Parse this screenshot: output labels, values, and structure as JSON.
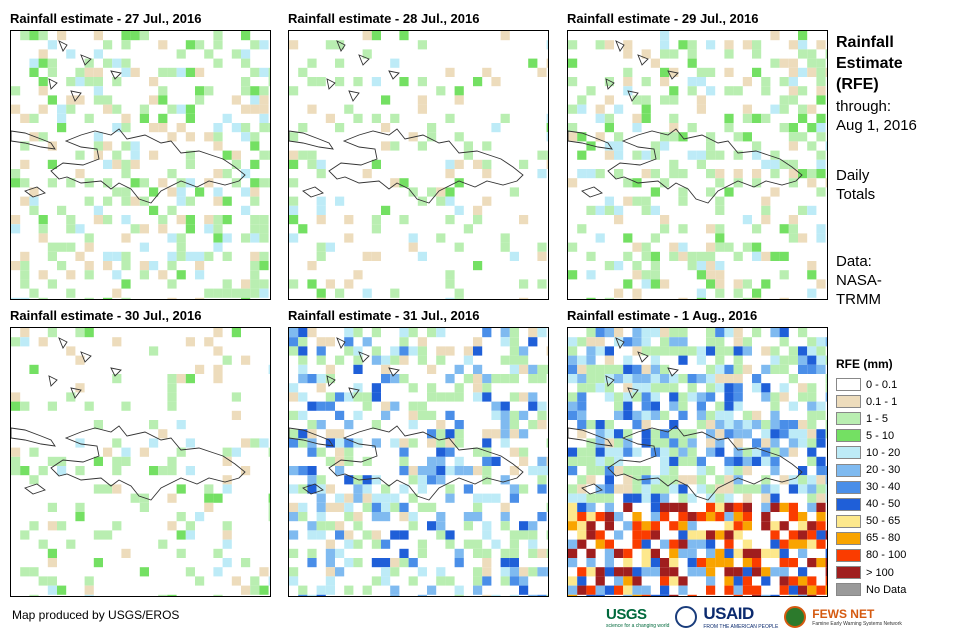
{
  "panels": [
    {
      "title": "Rainfall estimate - 27 Jul., 2016",
      "seed": 11,
      "intensity": "light"
    },
    {
      "title": "Rainfall estimate - 28 Jul., 2016",
      "seed": 23,
      "intensity": "sparse"
    },
    {
      "title": "Rainfall estimate - 29 Jul., 2016",
      "seed": 37,
      "intensity": "light"
    },
    {
      "title": "Rainfall estimate - 30 Jul., 2016",
      "seed": 41,
      "intensity": "sparse"
    },
    {
      "title": "Rainfall estimate - 31 Jul., 2016",
      "seed": 53,
      "intensity": "moderate"
    },
    {
      "title": "Rainfall estimate - 1 Aug., 2016",
      "seed": 67,
      "intensity": "heavy"
    }
  ],
  "side": {
    "title_line1": "Rainfall",
    "title_line2": "Estimate",
    "title_line3": "(RFE)",
    "through_label": "through:",
    "through_date": "Aug 1, 2016",
    "totals_line1": "Daily",
    "totals_line2": "Totals",
    "source_line1": "Data:",
    "source_line2": "NASA-",
    "source_line3": "TRMM"
  },
  "legend": {
    "title": "RFE (mm)",
    "items": [
      {
        "label": "0 - 0.1",
        "color": "#ffffff"
      },
      {
        "label": "0.1 - 1",
        "color": "#eddcbc"
      },
      {
        "label": "1 - 5",
        "color": "#b9eeb1"
      },
      {
        "label": "5 - 10",
        "color": "#74e063"
      },
      {
        "label": "10 - 20",
        "color": "#bdebf7"
      },
      {
        "label": "20 - 30",
        "color": "#7fbaf0"
      },
      {
        "label": "30 - 40",
        "color": "#4a8ee8"
      },
      {
        "label": "40 - 50",
        "color": "#1f5fd8"
      },
      {
        "label": "50 - 65",
        "color": "#fde88c"
      },
      {
        "label": "65 - 80",
        "color": "#f9a400"
      },
      {
        "label": "80 - 100",
        "color": "#fa3c00"
      },
      {
        "label": "> 100",
        "color": "#a01e1e"
      },
      {
        "label": "No Data",
        "color": "#9a9a9a"
      }
    ]
  },
  "footer": {
    "credit": "Map produced by USGS/EROS",
    "usgs": "USGS",
    "usgs_tag": "science for a changing world",
    "usaid": "USAID",
    "usaid_tag": "FROM THE AMERICAN PEOPLE",
    "fews": "FEWS NET",
    "fews_tag": "Famine Early Warning Systems Network"
  }
}
